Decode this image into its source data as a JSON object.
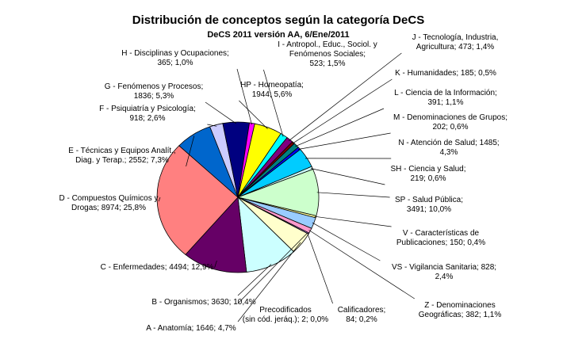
{
  "chart_data": {
    "type": "pie",
    "title": "Distribución de conceptos según la categoría DeCS",
    "subtitle": "DeCS 2011 versión AA, 6/Ene/2011",
    "slices": [
      {
        "category": "HP - Homeopatía",
        "value": 1944,
        "percent": "5,6%",
        "color": "#ffff00",
        "label_lines": [
          "HP - Homeopatía;",
          "1944; 5,6%"
        ]
      },
      {
        "category": "I - Antropol., Educ., Sociol. y Fenómenos Sociales",
        "value": 523,
        "percent": "1,5%",
        "color": "#00ffff",
        "label_lines": [
          "I - Antropol., Educ., Sociol. y",
          "Fenómenos Sociales;",
          "523; 1,5%"
        ]
      },
      {
        "category": "J - Tecnología, Industria, Agricultura",
        "value": 473,
        "percent": "1,4%",
        "color": "#800080",
        "label_lines": [
          "J - Tecnología, Industria,",
          "Agricultura; 473; 1,4%"
        ]
      },
      {
        "category": "K - Humanidades",
        "value": 185,
        "percent": "0,5%",
        "color": "#800000",
        "label_lines": [
          "K - Humanidades; 185; 0,5%"
        ]
      },
      {
        "category": "L - Ciencia de la Información",
        "value": 391,
        "percent": "1,1%",
        "color": "#008080",
        "label_lines": [
          "L - Ciencia de la Información;",
          "391; 1,1%"
        ]
      },
      {
        "category": "M - Denominaciones de Grupos",
        "value": 202,
        "percent": "0,6%",
        "color": "#0000ff",
        "label_lines": [
          "M - Denominaciones de Grupos;",
          "202; 0,6%"
        ]
      },
      {
        "category": "N - Atención de Salud",
        "value": 1485,
        "percent": "4,3%",
        "color": "#00ccff",
        "label_lines": [
          "N - Atención de Salud; 1485;",
          "4,3%"
        ]
      },
      {
        "category": "SH - Ciencia y Salud",
        "value": 219,
        "percent": "0,6%",
        "color": "#ccffff",
        "label_lines": [
          "SH - Ciencia y Salud;",
          "219; 0,6%"
        ]
      },
      {
        "category": "SP - Salud Pública",
        "value": 3491,
        "percent": "10,0%",
        "color": "#ccffcc",
        "label_lines": [
          "SP - Salud Pública;",
          "3491; 10,0%"
        ]
      },
      {
        "category": "V - Características de Publicaciones",
        "value": 150,
        "percent": "0,4%",
        "color": "#ffff99",
        "label_lines": [
          "V - Características de",
          "Publicaciones; 150; 0,4%"
        ]
      },
      {
        "category": "VS - Vigilancia Sanitaria",
        "value": 828,
        "percent": "2,4%",
        "color": "#99ccff",
        "label_lines": [
          "VS - Vigilancia Sanitaria; 828;",
          "2,4%"
        ]
      },
      {
        "category": "Z - Denominaciones Geográficas",
        "value": 382,
        "percent": "1,1%",
        "color": "#ff99cc",
        "label_lines": [
          "Z - Denominaciones",
          "Geográficas; 382; 1,1%"
        ]
      },
      {
        "category": "Calificadores",
        "value": 84,
        "percent": "0,2%",
        "color": "#cc99ff",
        "label_lines": [
          "Calificadores;",
          "84; 0,2%"
        ]
      },
      {
        "category": "Precodificados (sin cód. jeráq.)",
        "value": 2,
        "percent": "0,0%",
        "color": "#ffcc99",
        "label_lines": [
          "Precodificados",
          "(sin cód. jeráq.); 2; 0,0%"
        ]
      },
      {
        "category": "A - Anatomía",
        "value": 1646,
        "percent": "4,7%",
        "color": "#ffffcc",
        "label_lines": [
          "A - Anatomía; 1646; 4,7%"
        ]
      },
      {
        "category": "B - Organismos",
        "value": 3630,
        "percent": "10,4%",
        "color": "#ccffff",
        "label_lines": [
          "B - Organismos; 3630; 10,4%"
        ]
      },
      {
        "category": "C - Enfermedades",
        "value": 4494,
        "percent": "12,9%",
        "color": "#660066",
        "label_lines": [
          "C - Enfermedades; 4494; 12,9%"
        ]
      },
      {
        "category": "D - Compuestos Químicos y Drogas",
        "value": 8974,
        "percent": "25,8%",
        "color": "#ff8080",
        "label_lines": [
          "D - Compuestos Químicos y",
          "Drogas; 8974; 25,8%"
        ]
      },
      {
        "category": "E - Técnicas y Equipos Analít., Diag. y Terap.",
        "value": 2552,
        "percent": "7,3%",
        "color": "#0066cc",
        "label_lines": [
          "E - Técnicas y Equipos Analít.,",
          "Diag. y Terap.; 2552; 7,3%"
        ]
      },
      {
        "category": "F - Psiquiatría y Psicología",
        "value": 918,
        "percent": "2,6%",
        "color": "#ccccff",
        "label_lines": [
          "F - Psiquiatría y Psicología;",
          "918; 2,6%"
        ]
      },
      {
        "category": "G - Fenómenos y Procesos",
        "value": 1836,
        "percent": "5,3%",
        "color": "#000080",
        "label_lines": [
          "G - Fenómenos y Procesos;",
          "1836; 5,3%"
        ]
      },
      {
        "category": "H - Disciplinas y Ocupaciones",
        "value": 365,
        "percent": "1,0%",
        "color": "#ff00ff",
        "label_lines": [
          "H - Disciplinas y Ocupaciones;",
          "365; 1,0%"
        ]
      }
    ],
    "legend": "none"
  }
}
